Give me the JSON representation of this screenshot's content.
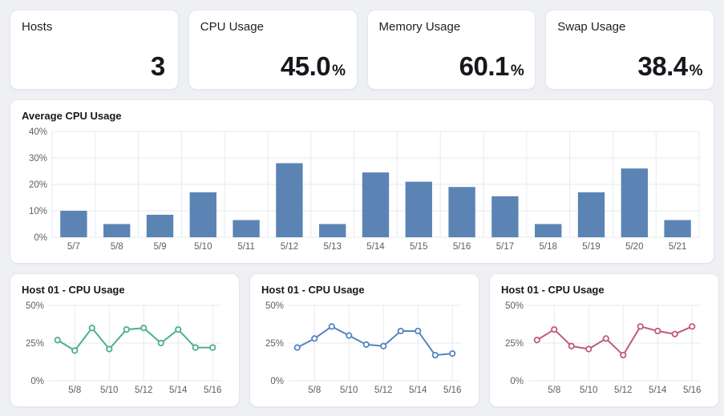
{
  "theme": {
    "background": "#eef0f4",
    "card_bg": "#ffffff",
    "card_border": "#e3e6eb",
    "grid_color": "#e7e9ee",
    "axis_text": "#5a6068",
    "bar_color": "#5b84b5",
    "line_colors": [
      "#4daf8e",
      "#5585c0",
      "#bf5b78"
    ]
  },
  "stat_cards": [
    {
      "label": "Hosts",
      "value": "3",
      "unit": ""
    },
    {
      "label": "CPU Usage",
      "value": "45.0",
      "unit": "%"
    },
    {
      "label": "Memory Usage",
      "value": "60.1",
      "unit": "%"
    },
    {
      "label": "Swap Usage",
      "value": "38.4",
      "unit": "%"
    }
  ],
  "chart_data": [
    {
      "type": "bar",
      "title": "Average CPU Usage",
      "categories": [
        "5/7",
        "5/8",
        "5/9",
        "5/10",
        "5/11",
        "5/12",
        "5/13",
        "5/14",
        "5/15",
        "5/16",
        "5/17",
        "5/18",
        "5/19",
        "5/20",
        "5/21"
      ],
      "values": [
        10,
        5,
        8.5,
        17,
        6.5,
        28,
        5,
        24.5,
        21,
        19,
        15.5,
        5,
        17,
        26,
        6.5
      ],
      "ylim": [
        0,
        40
      ],
      "yticks": [
        0,
        10,
        20,
        30,
        40
      ],
      "ytick_labels": [
        "0%",
        "10%",
        "20%",
        "30%",
        "40%"
      ],
      "xlabel": "",
      "ylabel": "",
      "grid": true,
      "color": "#5b84b5"
    },
    {
      "type": "line",
      "title": "Host 01 - CPU Usage",
      "x": [
        "5/7",
        "5/8",
        "5/9",
        "5/10",
        "5/11",
        "5/12",
        "5/13",
        "5/14",
        "5/15",
        "5/16"
      ],
      "values": [
        27,
        20,
        35,
        21,
        34,
        35,
        25,
        34,
        22,
        22
      ],
      "xtick_labels": [
        "5/8",
        "5/10",
        "5/12",
        "5/14",
        "5/16"
      ],
      "ylim": [
        0,
        50
      ],
      "yticks": [
        0,
        25,
        50
      ],
      "ytick_labels": [
        "0%",
        "25%",
        "50%"
      ],
      "grid": true,
      "color": "#4daf8e"
    },
    {
      "type": "line",
      "title": "Host 01 - CPU Usage",
      "x": [
        "5/7",
        "5/8",
        "5/9",
        "5/10",
        "5/11",
        "5/12",
        "5/13",
        "5/14",
        "5/15",
        "5/16"
      ],
      "values": [
        22,
        28,
        36,
        30,
        24,
        23,
        33,
        33,
        17,
        18
      ],
      "xtick_labels": [
        "5/8",
        "5/10",
        "5/12",
        "5/14",
        "5/16"
      ],
      "ylim": [
        0,
        50
      ],
      "yticks": [
        0,
        25,
        50
      ],
      "ytick_labels": [
        "0%",
        "25%",
        "50%"
      ],
      "grid": true,
      "color": "#5585c0"
    },
    {
      "type": "line",
      "title": "Host 01 - CPU Usage",
      "x": [
        "5/7",
        "5/8",
        "5/9",
        "5/10",
        "5/11",
        "5/12",
        "5/13",
        "5/14",
        "5/15",
        "5/16"
      ],
      "values": [
        27,
        34,
        23,
        21,
        28,
        17,
        36,
        33,
        31,
        36
      ],
      "xtick_labels": [
        "5/8",
        "5/10",
        "5/12",
        "5/14",
        "5/16"
      ],
      "ylim": [
        0,
        50
      ],
      "yticks": [
        0,
        25,
        50
      ],
      "ytick_labels": [
        "0%",
        "25%",
        "50%"
      ],
      "grid": true,
      "color": "#bf5b78"
    }
  ]
}
